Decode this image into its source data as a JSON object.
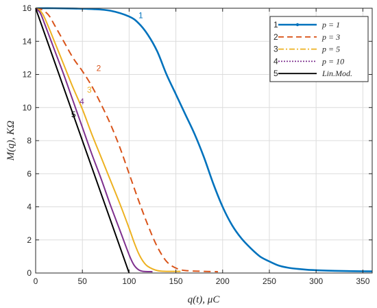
{
  "chart_data": {
    "type": "line",
    "xlabel": "q(t),  μC",
    "ylabel": "M(q),  KΩ",
    "xlim": [
      0,
      360
    ],
    "ylim": [
      0,
      16
    ],
    "xticks": [
      "0",
      "50",
      "100",
      "150",
      "200",
      "250",
      "300",
      "350"
    ],
    "yticks": [
      "0",
      "2",
      "4",
      "6",
      "8",
      "10",
      "12",
      "14",
      "16"
    ],
    "grid": true,
    "legend_position": "top-right",
    "series": [
      {
        "name": "p = 1",
        "number": "1",
        "color": "#0072BD",
        "style": "solid-thick-dots",
        "x": [
          0,
          20,
          40,
          60,
          80,
          100,
          110,
          120,
          130,
          140,
          150,
          160,
          170,
          180,
          190,
          200,
          210,
          220,
          230,
          240,
          250,
          260,
          270,
          280,
          290,
          300,
          320,
          340,
          360
        ],
        "y": [
          16,
          16,
          15.98,
          15.95,
          15.85,
          15.5,
          15.1,
          14.4,
          13.4,
          12.0,
          10.8,
          9.6,
          8.4,
          7.0,
          5.4,
          4.0,
          2.9,
          2.1,
          1.5,
          1.0,
          0.7,
          0.45,
          0.32,
          0.25,
          0.2,
          0.17,
          0.13,
          0.11,
          0.1
        ]
      },
      {
        "name": "p = 3",
        "number": "2",
        "color": "#D95319",
        "style": "dashed",
        "x": [
          0,
          5,
          10,
          15,
          20,
          30,
          40,
          50,
          60,
          70,
          80,
          90,
          100,
          110,
          120,
          130,
          140,
          150,
          160,
          180,
          195
        ],
        "y": [
          16,
          15.95,
          15.8,
          15.5,
          15.0,
          14.0,
          13.0,
          12.2,
          11.3,
          10.2,
          9.0,
          7.6,
          6.0,
          4.4,
          2.9,
          1.6,
          0.7,
          0.3,
          0.15,
          0.1,
          0.08
        ]
      },
      {
        "name": "p = 5",
        "number": "3",
        "color": "#EDB120",
        "style": "solid",
        "x": [
          0,
          3,
          8,
          15,
          20,
          30,
          40,
          50,
          60,
          70,
          80,
          90,
          100,
          105,
          110,
          115,
          120,
          130,
          140,
          155
        ],
        "y": [
          16,
          15.95,
          15.6,
          14.7,
          14.0,
          12.6,
          11.2,
          9.9,
          8.4,
          7.0,
          5.6,
          4.2,
          2.7,
          1.9,
          1.2,
          0.7,
          0.4,
          0.15,
          0.1,
          0.1
        ]
      },
      {
        "name": "p = 10",
        "number": "4",
        "color": "#7E2F8E",
        "style": "solid",
        "x": [
          0,
          5,
          10,
          20,
          30,
          40,
          50,
          60,
          70,
          80,
          90,
          100,
          105,
          110,
          115,
          125
        ],
        "y": [
          16,
          15.7,
          15.0,
          13.5,
          12.0,
          10.4,
          8.8,
          7.2,
          5.7,
          4.1,
          2.6,
          1.1,
          0.5,
          0.2,
          0.1,
          0.08
        ]
      },
      {
        "name": "Lin.Mod.",
        "number": "5",
        "color": "#000000",
        "style": "solid",
        "x": [
          0,
          100
        ],
        "y": [
          16,
          0
        ]
      }
    ],
    "curve_labels": [
      {
        "text": "1",
        "x": 110,
        "y": 15.4,
        "color": "#0072BD"
      },
      {
        "text": "2",
        "x": 65,
        "y": 12.2,
        "color": "#D95319"
      },
      {
        "text": "3",
        "x": 55,
        "y": 10.9,
        "color": "#EDB120"
      },
      {
        "text": "4",
        "x": 47,
        "y": 10.2,
        "color": "#7E2F8E"
      },
      {
        "text": "5",
        "x": 38,
        "y": 9.4,
        "color": "#000000"
      }
    ]
  }
}
